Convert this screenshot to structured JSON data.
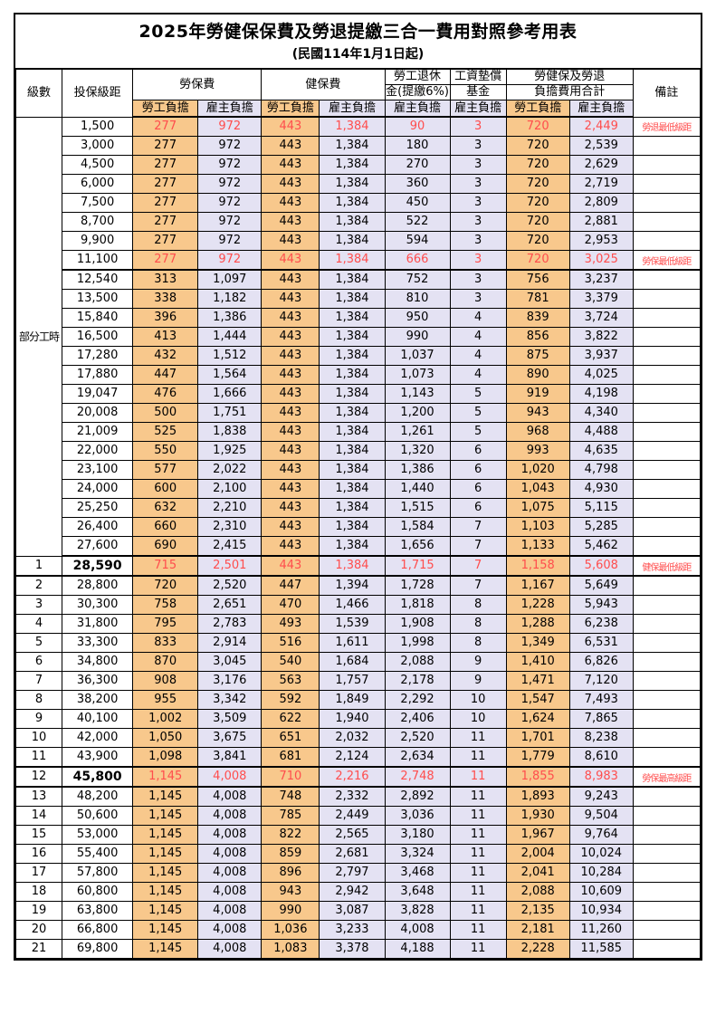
{
  "title": "2025年勞健保保費及勞退提繳三合一費用對照參考用表",
  "subtitle": "(民國114年1月1日起)",
  "columns": {
    "level": "級數",
    "bracket": "投保級距",
    "labor": "勞保費",
    "health": "健保費",
    "pension_line1": "勞工退休",
    "pension_line2": "金(提繳6%)",
    "fund_line1": "工資墊償",
    "fund_line2": "基金",
    "total_line1": "勞健保及勞退",
    "total_line2": "負擔費用合計",
    "remark": "備註",
    "employee": "勞工負擔",
    "employer": "雇主負擔"
  },
  "part_time_label": "部分工時",
  "colors": {
    "employee_bg": "#F8C88C",
    "employer_bg": "#E4E2F3",
    "highlight_text": "#FF4D4D",
    "border": "#000000"
  },
  "rows": [
    {
      "level": "",
      "bracket": "1,500",
      "cells": [
        "277",
        "972",
        "443",
        "1,384",
        "90",
        "3",
        "720",
        "2,449"
      ],
      "remark": "勞退最低級距",
      "red": true,
      "bold": false,
      "thick_top": false,
      "thick_bottom": false
    },
    {
      "level": "",
      "bracket": "3,000",
      "cells": [
        "277",
        "972",
        "443",
        "1,384",
        "180",
        "3",
        "720",
        "2,539"
      ],
      "remark": "",
      "red": false,
      "bold": false,
      "thick_top": false,
      "thick_bottom": false
    },
    {
      "level": "",
      "bracket": "4,500",
      "cells": [
        "277",
        "972",
        "443",
        "1,384",
        "270",
        "3",
        "720",
        "2,629"
      ],
      "remark": "",
      "red": false,
      "bold": false,
      "thick_top": false,
      "thick_bottom": false
    },
    {
      "level": "",
      "bracket": "6,000",
      "cells": [
        "277",
        "972",
        "443",
        "1,384",
        "360",
        "3",
        "720",
        "2,719"
      ],
      "remark": "",
      "red": false,
      "bold": false,
      "thick_top": false,
      "thick_bottom": false
    },
    {
      "level": "",
      "bracket": "7,500",
      "cells": [
        "277",
        "972",
        "443",
        "1,384",
        "450",
        "3",
        "720",
        "2,809"
      ],
      "remark": "",
      "red": false,
      "bold": false,
      "thick_top": false,
      "thick_bottom": false
    },
    {
      "level": "",
      "bracket": "8,700",
      "cells": [
        "277",
        "972",
        "443",
        "1,384",
        "522",
        "3",
        "720",
        "2,881"
      ],
      "remark": "",
      "red": false,
      "bold": false,
      "thick_top": false,
      "thick_bottom": false
    },
    {
      "level": "",
      "bracket": "9,900",
      "cells": [
        "277",
        "972",
        "443",
        "1,384",
        "594",
        "3",
        "720",
        "2,953"
      ],
      "remark": "",
      "red": false,
      "bold": false,
      "thick_top": false,
      "thick_bottom": false
    },
    {
      "level": "",
      "bracket": "11,100",
      "cells": [
        "277",
        "972",
        "443",
        "1,384",
        "666",
        "3",
        "720",
        "3,025"
      ],
      "remark": "勞保最低級距",
      "red": true,
      "bold": false,
      "thick_top": false,
      "thick_bottom": true
    },
    {
      "level": "",
      "bracket": "12,540",
      "cells": [
        "313",
        "1,097",
        "443",
        "1,384",
        "752",
        "3",
        "756",
        "3,237"
      ],
      "remark": "",
      "red": false,
      "bold": false,
      "thick_top": false,
      "thick_bottom": false
    },
    {
      "level": "",
      "bracket": "13,500",
      "cells": [
        "338",
        "1,182",
        "443",
        "1,384",
        "810",
        "3",
        "781",
        "3,379"
      ],
      "remark": "",
      "red": false,
      "bold": false,
      "thick_top": false,
      "thick_bottom": false
    },
    {
      "level": "",
      "bracket": "15,840",
      "cells": [
        "396",
        "1,386",
        "443",
        "1,384",
        "950",
        "4",
        "839",
        "3,724"
      ],
      "remark": "",
      "red": false,
      "bold": false,
      "thick_top": false,
      "thick_bottom": false
    },
    {
      "level": "",
      "bracket": "16,500",
      "cells": [
        "413",
        "1,444",
        "443",
        "1,384",
        "990",
        "4",
        "856",
        "3,822"
      ],
      "remark": "",
      "red": false,
      "bold": false,
      "thick_top": false,
      "thick_bottom": false
    },
    {
      "level": "",
      "bracket": "17,280",
      "cells": [
        "432",
        "1,512",
        "443",
        "1,384",
        "1,037",
        "4",
        "875",
        "3,937"
      ],
      "remark": "",
      "red": false,
      "bold": false,
      "thick_top": false,
      "thick_bottom": false
    },
    {
      "level": "",
      "bracket": "17,880",
      "cells": [
        "447",
        "1,564",
        "443",
        "1,384",
        "1,073",
        "4",
        "890",
        "4,025"
      ],
      "remark": "",
      "red": false,
      "bold": false,
      "thick_top": false,
      "thick_bottom": false
    },
    {
      "level": "",
      "bracket": "19,047",
      "cells": [
        "476",
        "1,666",
        "443",
        "1,384",
        "1,143",
        "5",
        "919",
        "4,198"
      ],
      "remark": "",
      "red": false,
      "bold": false,
      "thick_top": false,
      "thick_bottom": false
    },
    {
      "level": "",
      "bracket": "20,008",
      "cells": [
        "500",
        "1,751",
        "443",
        "1,384",
        "1,200",
        "5",
        "943",
        "4,340"
      ],
      "remark": "",
      "red": false,
      "bold": false,
      "thick_top": false,
      "thick_bottom": false
    },
    {
      "level": "",
      "bracket": "21,009",
      "cells": [
        "525",
        "1,838",
        "443",
        "1,384",
        "1,261",
        "5",
        "968",
        "4,488"
      ],
      "remark": "",
      "red": false,
      "bold": false,
      "thick_top": false,
      "thick_bottom": false
    },
    {
      "level": "",
      "bracket": "22,000",
      "cells": [
        "550",
        "1,925",
        "443",
        "1,384",
        "1,320",
        "6",
        "993",
        "4,635"
      ],
      "remark": "",
      "red": false,
      "bold": false,
      "thick_top": false,
      "thick_bottom": false
    },
    {
      "level": "",
      "bracket": "23,100",
      "cells": [
        "577",
        "2,022",
        "443",
        "1,384",
        "1,386",
        "6",
        "1,020",
        "4,798"
      ],
      "remark": "",
      "red": false,
      "bold": false,
      "thick_top": false,
      "thick_bottom": false
    },
    {
      "level": "",
      "bracket": "24,000",
      "cells": [
        "600",
        "2,100",
        "443",
        "1,384",
        "1,440",
        "6",
        "1,043",
        "4,930"
      ],
      "remark": "",
      "red": false,
      "bold": false,
      "thick_top": false,
      "thick_bottom": false
    },
    {
      "level": "",
      "bracket": "25,250",
      "cells": [
        "632",
        "2,210",
        "443",
        "1,384",
        "1,515",
        "6",
        "1,075",
        "5,115"
      ],
      "remark": "",
      "red": false,
      "bold": false,
      "thick_top": false,
      "thick_bottom": false
    },
    {
      "level": "",
      "bracket": "26,400",
      "cells": [
        "660",
        "2,310",
        "443",
        "1,384",
        "1,584",
        "7",
        "1,103",
        "5,285"
      ],
      "remark": "",
      "red": false,
      "bold": false,
      "thick_top": false,
      "thick_bottom": false
    },
    {
      "level": "",
      "bracket": "27,600",
      "cells": [
        "690",
        "2,415",
        "443",
        "1,384",
        "1,656",
        "7",
        "1,133",
        "5,462"
      ],
      "remark": "",
      "red": false,
      "bold": false,
      "thick_top": false,
      "thick_bottom": true
    },
    {
      "level": "1",
      "bracket": "28,590",
      "cells": [
        "715",
        "2,501",
        "443",
        "1,384",
        "1,715",
        "7",
        "1,158",
        "5,608"
      ],
      "remark": "健保最低級距",
      "red": true,
      "bold": true,
      "thick_top": false,
      "thick_bottom": true
    },
    {
      "level": "2",
      "bracket": "28,800",
      "cells": [
        "720",
        "2,520",
        "447",
        "1,394",
        "1,728",
        "7",
        "1,167",
        "5,649"
      ],
      "remark": "",
      "red": false,
      "bold": false,
      "thick_top": false,
      "thick_bottom": false
    },
    {
      "level": "3",
      "bracket": "30,300",
      "cells": [
        "758",
        "2,651",
        "470",
        "1,466",
        "1,818",
        "8",
        "1,228",
        "5,943"
      ],
      "remark": "",
      "red": false,
      "bold": false,
      "thick_top": false,
      "thick_bottom": false
    },
    {
      "level": "4",
      "bracket": "31,800",
      "cells": [
        "795",
        "2,783",
        "493",
        "1,539",
        "1,908",
        "8",
        "1,288",
        "6,238"
      ],
      "remark": "",
      "red": false,
      "bold": false,
      "thick_top": false,
      "thick_bottom": false
    },
    {
      "level": "5",
      "bracket": "33,300",
      "cells": [
        "833",
        "2,914",
        "516",
        "1,611",
        "1,998",
        "8",
        "1,349",
        "6,531"
      ],
      "remark": "",
      "red": false,
      "bold": false,
      "thick_top": false,
      "thick_bottom": false
    },
    {
      "level": "6",
      "bracket": "34,800",
      "cells": [
        "870",
        "3,045",
        "540",
        "1,684",
        "2,088",
        "9",
        "1,410",
        "6,826"
      ],
      "remark": "",
      "red": false,
      "bold": false,
      "thick_top": false,
      "thick_bottom": false
    },
    {
      "level": "7",
      "bracket": "36,300",
      "cells": [
        "908",
        "3,176",
        "563",
        "1,757",
        "2,178",
        "9",
        "1,471",
        "7,120"
      ],
      "remark": "",
      "red": false,
      "bold": false,
      "thick_top": false,
      "thick_bottom": false
    },
    {
      "level": "8",
      "bracket": "38,200",
      "cells": [
        "955",
        "3,342",
        "592",
        "1,849",
        "2,292",
        "10",
        "1,547",
        "7,493"
      ],
      "remark": "",
      "red": false,
      "bold": false,
      "thick_top": false,
      "thick_bottom": false
    },
    {
      "level": "9",
      "bracket": "40,100",
      "cells": [
        "1,002",
        "3,509",
        "622",
        "1,940",
        "2,406",
        "10",
        "1,624",
        "7,865"
      ],
      "remark": "",
      "red": false,
      "bold": false,
      "thick_top": false,
      "thick_bottom": false
    },
    {
      "level": "10",
      "bracket": "42,000",
      "cells": [
        "1,050",
        "3,675",
        "651",
        "2,032",
        "2,520",
        "11",
        "1,701",
        "8,238"
      ],
      "remark": "",
      "red": false,
      "bold": false,
      "thick_top": false,
      "thick_bottom": false
    },
    {
      "level": "11",
      "bracket": "43,900",
      "cells": [
        "1,098",
        "3,841",
        "681",
        "2,124",
        "2,634",
        "11",
        "1,779",
        "8,610"
      ],
      "remark": "",
      "red": false,
      "bold": false,
      "thick_top": false,
      "thick_bottom": true
    },
    {
      "level": "12",
      "bracket": "45,800",
      "cells": [
        "1,145",
        "4,008",
        "710",
        "2,216",
        "2,748",
        "11",
        "1,855",
        "8,983"
      ],
      "remark": "勞保最高級距",
      "red": true,
      "bold": true,
      "thick_top": false,
      "thick_bottom": true
    },
    {
      "level": "13",
      "bracket": "48,200",
      "cells": [
        "1,145",
        "4,008",
        "748",
        "2,332",
        "2,892",
        "11",
        "1,893",
        "9,243"
      ],
      "remark": "",
      "red": false,
      "bold": false,
      "thick_top": false,
      "thick_bottom": false
    },
    {
      "level": "14",
      "bracket": "50,600",
      "cells": [
        "1,145",
        "4,008",
        "785",
        "2,449",
        "3,036",
        "11",
        "1,930",
        "9,504"
      ],
      "remark": "",
      "red": false,
      "bold": false,
      "thick_top": false,
      "thick_bottom": false
    },
    {
      "level": "15",
      "bracket": "53,000",
      "cells": [
        "1,145",
        "4,008",
        "822",
        "2,565",
        "3,180",
        "11",
        "1,967",
        "9,764"
      ],
      "remark": "",
      "red": false,
      "bold": false,
      "thick_top": false,
      "thick_bottom": false
    },
    {
      "level": "16",
      "bracket": "55,400",
      "cells": [
        "1,145",
        "4,008",
        "859",
        "2,681",
        "3,324",
        "11",
        "2,004",
        "10,024"
      ],
      "remark": "",
      "red": false,
      "bold": false,
      "thick_top": false,
      "thick_bottom": false
    },
    {
      "level": "17",
      "bracket": "57,800",
      "cells": [
        "1,145",
        "4,008",
        "896",
        "2,797",
        "3,468",
        "11",
        "2,041",
        "10,284"
      ],
      "remark": "",
      "red": false,
      "bold": false,
      "thick_top": false,
      "thick_bottom": false
    },
    {
      "level": "18",
      "bracket": "60,800",
      "cells": [
        "1,145",
        "4,008",
        "943",
        "2,942",
        "3,648",
        "11",
        "2,088",
        "10,609"
      ],
      "remark": "",
      "red": false,
      "bold": false,
      "thick_top": false,
      "thick_bottom": false
    },
    {
      "level": "19",
      "bracket": "63,800",
      "cells": [
        "1,145",
        "4,008",
        "990",
        "3,087",
        "3,828",
        "11",
        "2,135",
        "10,934"
      ],
      "remark": "",
      "red": false,
      "bold": false,
      "thick_top": false,
      "thick_bottom": false
    },
    {
      "level": "20",
      "bracket": "66,800",
      "cells": [
        "1,145",
        "4,008",
        "1,036",
        "3,233",
        "4,008",
        "11",
        "2,181",
        "11,260"
      ],
      "remark": "",
      "red": false,
      "bold": false,
      "thick_top": false,
      "thick_bottom": false
    },
    {
      "level": "21",
      "bracket": "69,800",
      "cells": [
        "1,145",
        "4,008",
        "1,083",
        "3,378",
        "4,188",
        "11",
        "2,228",
        "11,585"
      ],
      "remark": "",
      "red": false,
      "bold": false,
      "thick_top": false,
      "thick_bottom": false
    }
  ]
}
